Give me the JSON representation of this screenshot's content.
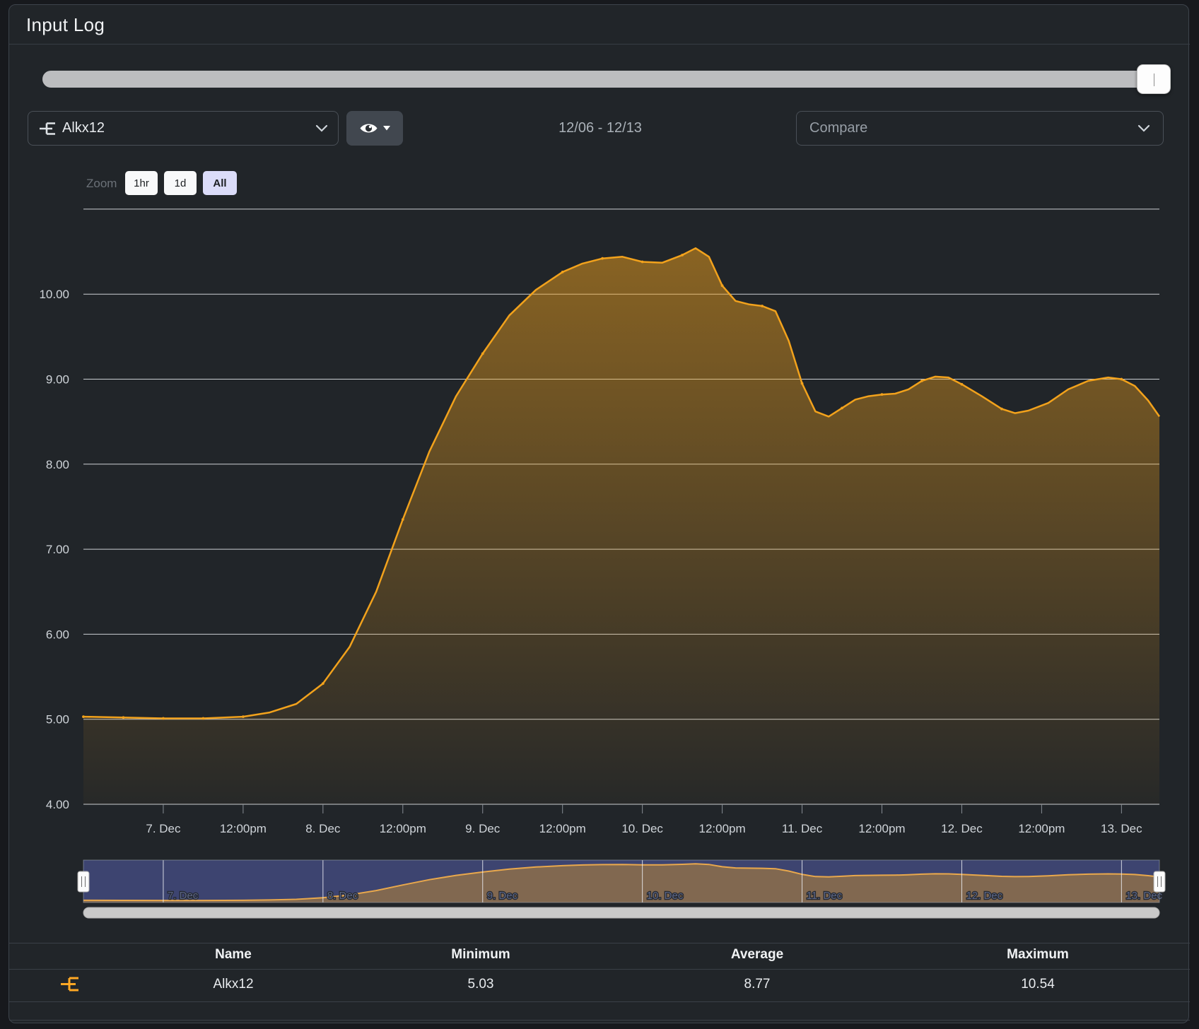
{
  "title": "Input Log",
  "controls": {
    "series_select": {
      "value": "Alkx12"
    },
    "date_range": "12/06 - 12/13",
    "compare_placeholder": "Compare",
    "zoom_label": "Zoom",
    "zoom_buttons": [
      "1hr",
      "1d",
      "All"
    ],
    "zoom_active": "All"
  },
  "colors": {
    "series_line": "#f2a21c",
    "navigator_mask": "#3d4470",
    "panel_bg": "#212529",
    "gridline": "#dfe2e6",
    "axis_text": "#cfd4d9",
    "table_icon": "#ffa824"
  },
  "chart_data": {
    "type": "area",
    "title": "",
    "series": [
      {
        "name": "Alkx12",
        "color": "#f2a21c",
        "x_unit": "hours from 12/06 12:00pm",
        "points": [
          [
            0,
            5.03
          ],
          [
            6,
            5.02
          ],
          [
            12,
            5.01
          ],
          [
            18,
            5.01
          ],
          [
            24,
            5.03
          ],
          [
            28,
            5.08
          ],
          [
            32,
            5.18
          ],
          [
            36,
            5.42
          ],
          [
            40,
            5.85
          ],
          [
            44,
            6.5
          ],
          [
            48,
            7.35
          ],
          [
            52,
            8.15
          ],
          [
            56,
            8.8
          ],
          [
            60,
            9.3
          ],
          [
            64,
            9.75
          ],
          [
            68,
            10.05
          ],
          [
            72,
            10.26
          ],
          [
            75,
            10.36
          ],
          [
            78,
            10.42
          ],
          [
            81,
            10.44
          ],
          [
            84,
            10.38
          ],
          [
            87,
            10.37
          ],
          [
            90,
            10.46
          ],
          [
            92,
            10.54
          ],
          [
            94,
            10.44
          ],
          [
            96,
            10.1
          ],
          [
            98,
            9.92
          ],
          [
            100,
            9.88
          ],
          [
            102,
            9.86
          ],
          [
            104,
            9.8
          ],
          [
            106,
            9.45
          ],
          [
            108,
            8.95
          ],
          [
            110,
            8.62
          ],
          [
            112,
            8.56
          ],
          [
            114,
            8.66
          ],
          [
            116,
            8.76
          ],
          [
            118,
            8.8
          ],
          [
            120,
            8.82
          ],
          [
            122,
            8.83
          ],
          [
            124,
            8.88
          ],
          [
            126,
            8.98
          ],
          [
            128,
            9.03
          ],
          [
            130,
            9.02
          ],
          [
            132,
            8.94
          ],
          [
            135,
            8.8
          ],
          [
            138,
            8.65
          ],
          [
            140,
            8.6
          ],
          [
            142,
            8.63
          ],
          [
            145,
            8.72
          ],
          [
            148,
            8.88
          ],
          [
            151,
            8.98
          ],
          [
            154,
            9.02
          ],
          [
            156,
            9.0
          ],
          [
            158,
            8.92
          ],
          [
            160,
            8.75
          ],
          [
            161.7,
            8.56
          ]
        ]
      }
    ],
    "x_range_hours": [
      0,
      161.7
    ],
    "y_range": [
      4,
      11
    ],
    "grid": true,
    "legend_position": "none",
    "y_ticks": [
      {
        "v": 4,
        "label": "4.00"
      },
      {
        "v": 5,
        "label": "5.00"
      },
      {
        "v": 6,
        "label": "6.00"
      },
      {
        "v": 7,
        "label": "7.00"
      },
      {
        "v": 8,
        "label": "8.00"
      },
      {
        "v": 9,
        "label": "9.00"
      },
      {
        "v": 10,
        "label": "10.00"
      }
    ],
    "y_gridlines": [
      5,
      6,
      7,
      8,
      9,
      10,
      11
    ],
    "x_ticks": [
      {
        "t": 12,
        "label": "7. Dec"
      },
      {
        "t": 24,
        "label": "12:00pm"
      },
      {
        "t": 36,
        "label": "8. Dec"
      },
      {
        "t": 48,
        "label": "12:00pm"
      },
      {
        "t": 60,
        "label": "9. Dec"
      },
      {
        "t": 72,
        "label": "12:00pm"
      },
      {
        "t": 84,
        "label": "10. Dec"
      },
      {
        "t": 96,
        "label": "12:00pm"
      },
      {
        "t": 108,
        "label": "11. Dec"
      },
      {
        "t": 120,
        "label": "12:00pm"
      },
      {
        "t": 132,
        "label": "12. Dec"
      },
      {
        "t": 144,
        "label": "12:00pm"
      },
      {
        "t": 156,
        "label": "13. Dec"
      }
    ],
    "navigator_labels": [
      {
        "t": 12,
        "label": "7. Dec"
      },
      {
        "t": 36,
        "label": "8. Dec"
      },
      {
        "t": 60,
        "label": "9. Dec"
      },
      {
        "t": 84,
        "label": "10. Dec"
      },
      {
        "t": 108,
        "label": "11. Dec"
      },
      {
        "t": 132,
        "label": "12. Dec"
      },
      {
        "t": 156,
        "label": "13. Dec"
      }
    ]
  },
  "table": {
    "headers": [
      "Name",
      "Minimum",
      "Average",
      "Maximum"
    ],
    "rows": [
      {
        "name": "Alkx12",
        "minimum": "5.03",
        "average": "8.77",
        "maximum": "10.54"
      }
    ]
  }
}
